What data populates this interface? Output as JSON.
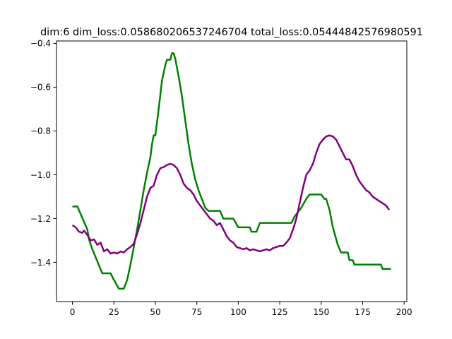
{
  "chart_data": {
    "type": "line",
    "title": "dim:6 dim_loss:0.058680206537246704 total_loss:0.05444842576980591",
    "xlabel": "",
    "ylabel": "",
    "xlim": [
      -9.6,
      201.6
    ],
    "ylim": [
      -1.579,
      -0.389
    ],
    "x_ticks": [
      0,
      25,
      50,
      75,
      100,
      125,
      150,
      175,
      200
    ],
    "y_ticks": [
      -1.4,
      -1.2,
      -1.0,
      -0.8,
      -0.6,
      -0.4
    ],
    "x_tick_labels": [
      "0",
      "25",
      "50",
      "75",
      "100",
      "125",
      "150",
      "175",
      "200"
    ],
    "y_tick_labels": [
      "−1.4",
      "−1.2",
      "−1.0",
      "−0.8",
      "−0.6",
      "−0.4"
    ],
    "grid": false,
    "legend": "none",
    "series": [
      {
        "color": "#008000",
        "points": [
          [
            0,
            -1.145
          ],
          [
            3,
            -1.145
          ],
          [
            5,
            -1.18
          ],
          [
            7,
            -1.215
          ],
          [
            9,
            -1.25
          ],
          [
            10,
            -1.295
          ],
          [
            12,
            -1.34
          ],
          [
            15,
            -1.395
          ],
          [
            18,
            -1.45
          ],
          [
            23,
            -1.45
          ],
          [
            25,
            -1.48
          ],
          [
            28,
            -1.52
          ],
          [
            31,
            -1.52
          ],
          [
            33,
            -1.48
          ],
          [
            35,
            -1.41
          ],
          [
            37,
            -1.33
          ],
          [
            39,
            -1.25
          ],
          [
            41,
            -1.16
          ],
          [
            43,
            -1.07
          ],
          [
            45,
            -0.99
          ],
          [
            47,
            -0.92
          ],
          [
            48,
            -0.86
          ],
          [
            49,
            -0.82
          ],
          [
            50,
            -0.82
          ],
          [
            52,
            -0.7
          ],
          [
            54,
            -0.57
          ],
          [
            56,
            -0.5
          ],
          [
            57,
            -0.475
          ],
          [
            59,
            -0.475
          ],
          [
            60,
            -0.445
          ],
          [
            61,
            -0.445
          ],
          [
            62,
            -0.47
          ],
          [
            64,
            -0.55
          ],
          [
            66,
            -0.64
          ],
          [
            68,
            -0.75
          ],
          [
            70,
            -0.86
          ],
          [
            72,
            -0.95
          ],
          [
            74,
            -1.02
          ],
          [
            76,
            -1.07
          ],
          [
            78,
            -1.11
          ],
          [
            80,
            -1.15
          ],
          [
            82,
            -1.165
          ],
          [
            89,
            -1.165
          ],
          [
            91,
            -1.2
          ],
          [
            97,
            -1.2
          ],
          [
            100,
            -1.24
          ],
          [
            107,
            -1.24
          ],
          [
            108,
            -1.26
          ],
          [
            111,
            -1.26
          ],
          [
            113,
            -1.22
          ],
          [
            132,
            -1.22
          ],
          [
            134,
            -1.19
          ],
          [
            138,
            -1.15
          ],
          [
            141,
            -1.11
          ],
          [
            143,
            -1.09
          ],
          [
            150,
            -1.09
          ],
          [
            152,
            -1.11
          ],
          [
            153,
            -1.11
          ],
          [
            155,
            -1.16
          ],
          [
            157,
            -1.24
          ],
          [
            160,
            -1.32
          ],
          [
            162,
            -1.355
          ],
          [
            166,
            -1.355
          ],
          [
            167,
            -1.39
          ],
          [
            169,
            -1.39
          ],
          [
            170,
            -1.41
          ],
          [
            186,
            -1.41
          ],
          [
            187,
            -1.43
          ],
          [
            192,
            -1.43
          ]
        ]
      },
      {
        "color": "#800080",
        "points": [
          [
            0,
            -1.23
          ],
          [
            2,
            -1.24
          ],
          [
            4,
            -1.26
          ],
          [
            6,
            -1.265
          ],
          [
            7,
            -1.255
          ],
          [
            9,
            -1.275
          ],
          [
            11,
            -1.3
          ],
          [
            13,
            -1.295
          ],
          [
            15,
            -1.32
          ],
          [
            17,
            -1.31
          ],
          [
            19,
            -1.35
          ],
          [
            21,
            -1.34
          ],
          [
            23,
            -1.36
          ],
          [
            25,
            -1.355
          ],
          [
            27,
            -1.36
          ],
          [
            29,
            -1.35
          ],
          [
            31,
            -1.355
          ],
          [
            33,
            -1.34
          ],
          [
            35,
            -1.33
          ],
          [
            37,
            -1.315
          ],
          [
            39,
            -1.27
          ],
          [
            41,
            -1.22
          ],
          [
            43,
            -1.16
          ],
          [
            45,
            -1.1
          ],
          [
            47,
            -1.06
          ],
          [
            49,
            -1.05
          ],
          [
            51,
            -1.0
          ],
          [
            53,
            -0.97
          ],
          [
            55,
            -0.965
          ],
          [
            57,
            -0.955
          ],
          [
            59,
            -0.95
          ],
          [
            61,
            -0.955
          ],
          [
            63,
            -0.97
          ],
          [
            65,
            -1.0
          ],
          [
            67,
            -1.04
          ],
          [
            69,
            -1.06
          ],
          [
            71,
            -1.07
          ],
          [
            73,
            -1.09
          ],
          [
            75,
            -1.12
          ],
          [
            77,
            -1.14
          ],
          [
            79,
            -1.16
          ],
          [
            81,
            -1.18
          ],
          [
            83,
            -1.2
          ],
          [
            85,
            -1.21
          ],
          [
            87,
            -1.23
          ],
          [
            89,
            -1.22
          ],
          [
            91,
            -1.25
          ],
          [
            93,
            -1.28
          ],
          [
            95,
            -1.3
          ],
          [
            97,
            -1.31
          ],
          [
            99,
            -1.33
          ],
          [
            101,
            -1.335
          ],
          [
            103,
            -1.34
          ],
          [
            105,
            -1.335
          ],
          [
            107,
            -1.345
          ],
          [
            109,
            -1.34
          ],
          [
            111,
            -1.345
          ],
          [
            113,
            -1.35
          ],
          [
            115,
            -1.345
          ],
          [
            117,
            -1.34
          ],
          [
            119,
            -1.345
          ],
          [
            121,
            -1.335
          ],
          [
            123,
            -1.33
          ],
          [
            125,
            -1.325
          ],
          [
            127,
            -1.325
          ],
          [
            129,
            -1.31
          ],
          [
            131,
            -1.29
          ],
          [
            133,
            -1.25
          ],
          [
            135,
            -1.2
          ],
          [
            137,
            -1.13
          ],
          [
            139,
            -1.06
          ],
          [
            141,
            -1.0
          ],
          [
            143,
            -0.98
          ],
          [
            145,
            -0.95
          ],
          [
            147,
            -0.9
          ],
          [
            149,
            -0.86
          ],
          [
            151,
            -0.84
          ],
          [
            153,
            -0.825
          ],
          [
            155,
            -0.82
          ],
          [
            157,
            -0.825
          ],
          [
            159,
            -0.84
          ],
          [
            161,
            -0.87
          ],
          [
            163,
            -0.9
          ],
          [
            165,
            -0.93
          ],
          [
            167,
            -0.93
          ],
          [
            169,
            -0.96
          ],
          [
            171,
            -1.0
          ],
          [
            173,
            -1.03
          ],
          [
            175,
            -1.05
          ],
          [
            177,
            -1.07
          ],
          [
            179,
            -1.08
          ],
          [
            181,
            -1.1
          ],
          [
            183,
            -1.11
          ],
          [
            185,
            -1.12
          ],
          [
            187,
            -1.13
          ],
          [
            189,
            -1.14
          ],
          [
            191,
            -1.16
          ]
        ]
      }
    ]
  }
}
